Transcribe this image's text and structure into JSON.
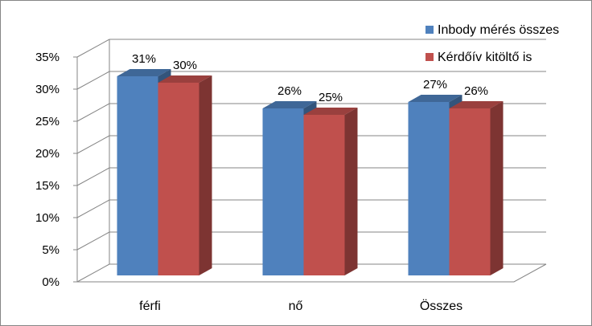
{
  "chart_data": {
    "type": "bar",
    "title": "",
    "xlabel": "",
    "ylabel": "",
    "categories": [
      "férfi",
      "nő",
      "Összes"
    ],
    "series": [
      {
        "name": "Inbody mérés összes",
        "values": [
          31,
          26,
          27
        ],
        "labels": [
          "31%",
          "26%",
          "27%"
        ],
        "color": "#4f81bd"
      },
      {
        "name": "Kérdőív kitöltő is",
        "values": [
          30,
          25,
          26
        ],
        "labels": [
          "30%",
          "25%",
          "26%"
        ],
        "color": "#c0504d"
      }
    ],
    "ylim": [
      0,
      35
    ],
    "yticks": [
      0,
      5,
      10,
      15,
      20,
      25,
      30,
      35
    ],
    "ytick_labels": [
      "0%",
      "5%",
      "10%",
      "15%",
      "20%",
      "25%",
      "30%",
      "35%"
    ],
    "grid": true,
    "legend_position": "top-right",
    "style": "3d-clustered-column"
  }
}
